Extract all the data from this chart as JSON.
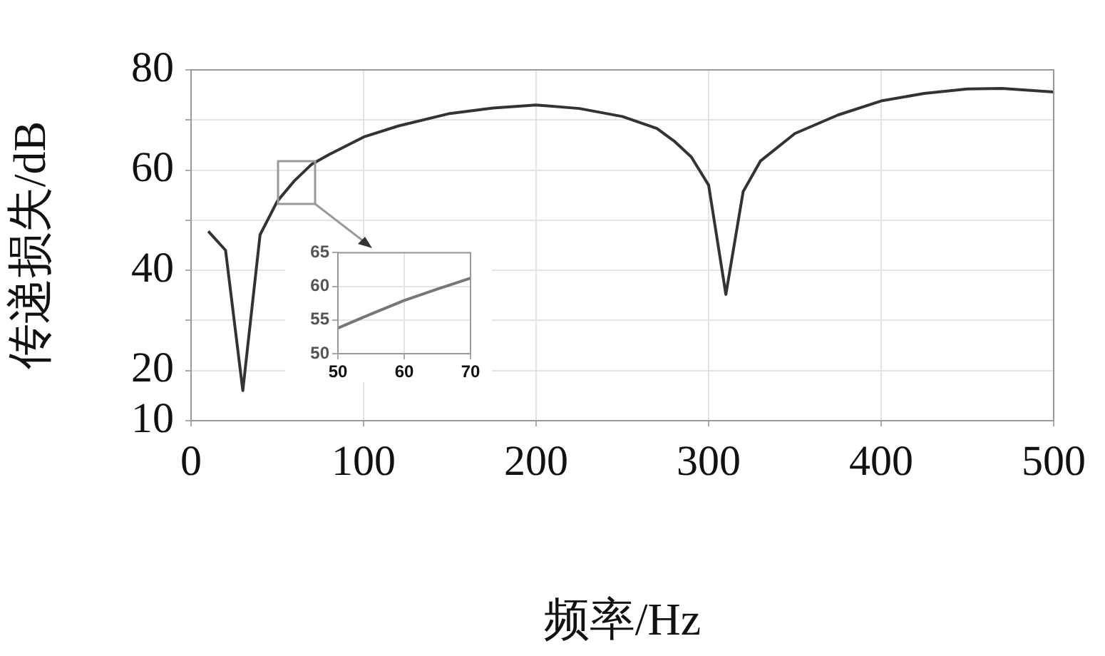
{
  "chart_data": [
    {
      "type": "line",
      "xlabel": "频率/Hz",
      "ylabel": "传递损失/dB",
      "x": [
        10,
        20,
        30,
        40,
        50,
        60,
        70,
        80,
        100,
        120,
        150,
        175,
        200,
        225,
        250,
        270,
        280,
        290,
        300,
        310,
        320,
        330,
        350,
        375,
        400,
        425,
        450,
        470,
        500
      ],
      "series": [
        {
          "color": "#333333",
          "values": [
            47.8,
            44,
            16,
            47.1,
            53.8,
            57.9,
            61.2,
            63.1,
            66.6,
            68.8,
            71.3,
            72.4,
            73,
            72.3,
            70.7,
            68.3,
            65.8,
            62.6,
            57,
            35.2,
            55.7,
            61.8,
            67.3,
            71,
            73.8,
            75.3,
            76.2,
            76.3,
            75.6
          ]
        }
      ],
      "xlim": [
        0,
        500
      ],
      "xticks": [
        0,
        100,
        200,
        300,
        400,
        500
      ],
      "ylim": [
        10,
        80
      ],
      "yticks": [
        10,
        20,
        {
          "value": 30,
          "label": null
        },
        40,
        {
          "value": 50,
          "label": null
        },
        60,
        {
          "value": 70,
          "label": null
        },
        80
      ],
      "grid": true,
      "marker": "none",
      "line_style": "solid",
      "legend": false
    },
    {
      "type": "line",
      "x": [
        50,
        55,
        60,
        65,
        70
      ],
      "series": [
        {
          "color": "#777777",
          "values": [
            53.8,
            55.9,
            57.9,
            59.6,
            61.2
          ]
        }
      ],
      "xlim": [
        50,
        70
      ],
      "xticks": [
        50,
        60,
        70
      ],
      "ylim": [
        50,
        65
      ],
      "yticks": [
        50,
        55,
        60,
        65
      ],
      "grid": true,
      "marker": "none",
      "line_style": "solid",
      "legend": false
    }
  ]
}
